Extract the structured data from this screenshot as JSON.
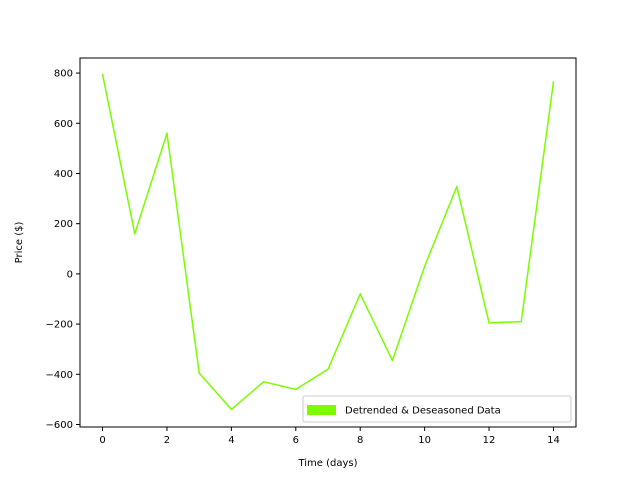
{
  "chart_data": {
    "type": "line",
    "title": "",
    "xlabel": "Time (days)",
    "ylabel": "Price ($)",
    "xlim": [
      -0.7,
      14.7
    ],
    "ylim": [
      -610,
      860
    ],
    "xticks": [
      0,
      2,
      4,
      6,
      8,
      10,
      12,
      14
    ],
    "yticks": [
      -600,
      -400,
      -200,
      0,
      200,
      400,
      600,
      800
    ],
    "grid": false,
    "legend_position": "lower-right",
    "series": [
      {
        "name": "Detrended & Deseasoned Data",
        "color": "#7cfc00",
        "x": [
          0,
          1,
          2,
          3,
          4,
          5,
          6,
          7,
          8,
          9,
          10,
          11,
          12,
          13,
          14
        ],
        "y": [
          795,
          160,
          560,
          -395,
          -540,
          -430,
          -460,
          -380,
          -80,
          -345,
          30,
          348,
          -195,
          -190,
          765
        ]
      }
    ]
  }
}
